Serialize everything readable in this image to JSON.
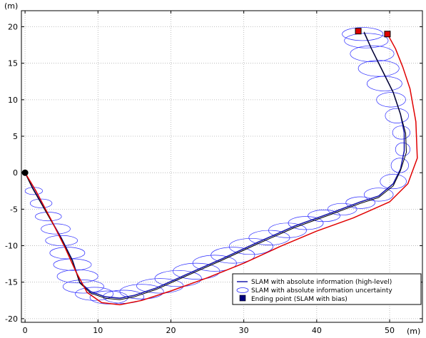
{
  "chart_data": {
    "type": "line",
    "xlabel": "(m)",
    "ylabel": "(m)",
    "xlim": [
      -0.5,
      54.5
    ],
    "ylim": [
      -20.5,
      22.2
    ],
    "xticks": [
      0,
      10,
      20,
      30,
      40,
      50
    ],
    "yticks": [
      -20,
      -15,
      -10,
      -5,
      0,
      5,
      10,
      15,
      20
    ],
    "grid": true,
    "legend_position": "bottom-right",
    "legend": [
      "SLAM with absolute information (high-level)",
      "SLAM with absolute information uncertainty",
      "Ending point (SLAM with bias)"
    ],
    "colors": {
      "slam_abs": "#1a1aaa",
      "uncertainty": "#2a2aff",
      "biased": "#e00000",
      "ground_truth": "#000000",
      "start_marker": "#000000",
      "end_marker_abs": "#e00000",
      "end_marker_bias": "#e00000",
      "legend_square": "#000080",
      "grid": "#b0b0b0"
    },
    "series": [
      {
        "name": "SLAM with absolute information (high-level)",
        "x": [
          0,
          1,
          3,
          5,
          6.5,
          7.5,
          9,
          11,
          13,
          15,
          18,
          22,
          27,
          32,
          37,
          42,
          46,
          48.5,
          50.5,
          51.5,
          52,
          52,
          51.5,
          50.5,
          49,
          47.5,
          46.5
        ],
        "y": [
          0,
          -2,
          -5.5,
          -9,
          -12,
          -15,
          -16.3,
          -17,
          -17.2,
          -16.8,
          -15.8,
          -14,
          -11.8,
          -9.5,
          -7.3,
          -5.5,
          -4,
          -3.2,
          -1.5,
          0.5,
          3,
          5.5,
          8,
          11,
          14,
          17,
          19.2
        ]
      },
      {
        "x": [
          0,
          1,
          3,
          5,
          6.5,
          7.5,
          9,
          11,
          13,
          15,
          18,
          22,
          27,
          32,
          37,
          42,
          46,
          48.5,
          50.5,
          51.5,
          52.3,
          52.2,
          51.5,
          50.5,
          49,
          47.5,
          46.5
        ],
        "y": [
          0,
          -2.1,
          -5.6,
          -9.1,
          -12.1,
          -15.1,
          -16.5,
          -17.2,
          -17.4,
          -17,
          -16,
          -14.2,
          -12,
          -9.7,
          -7.5,
          -5.7,
          -4.2,
          -3.4,
          -1.8,
          0.3,
          2.8,
          5.4,
          8,
          11,
          14,
          17,
          19.3
        ]
      },
      {
        "x": [
          0,
          1.5,
          3.5,
          5.5,
          7,
          8.5,
          10.5,
          13,
          16,
          20,
          25,
          30,
          35,
          40,
          45,
          50,
          52.5,
          53.8,
          53.6,
          52.8,
          51.8,
          50.8,
          49.7
        ],
        "y": [
          0,
          -2.5,
          -6.3,
          -10.3,
          -13.6,
          -16.4,
          -17.8,
          -18.1,
          -17.5,
          -16.2,
          -14.4,
          -12.4,
          -10.1,
          -8,
          -6.2,
          -4,
          -1.5,
          2,
          7,
          11.5,
          14.5,
          17,
          19
        ]
      }
    ],
    "uncertainty_ellipses": [
      {
        "x": 1.2,
        "y": -2.5,
        "rx": 1.2,
        "ry": 0.5
      },
      {
        "x": 2.2,
        "y": -4.2,
        "rx": 1.5,
        "ry": 0.6
      },
      {
        "x": 3.2,
        "y": -6,
        "rx": 1.8,
        "ry": 0.6
      },
      {
        "x": 4.2,
        "y": -7.7,
        "rx": 2,
        "ry": 0.7
      },
      {
        "x": 5,
        "y": -9.3,
        "rx": 2.2,
        "ry": 0.7
      },
      {
        "x": 5.8,
        "y": -11,
        "rx": 2.4,
        "ry": 0.8
      },
      {
        "x": 6.5,
        "y": -12.6,
        "rx": 2.6,
        "ry": 0.8
      },
      {
        "x": 7.2,
        "y": -14.2,
        "rx": 2.8,
        "ry": 0.9
      },
      {
        "x": 8,
        "y": -15.6,
        "rx": 2.8,
        "ry": 0.9
      },
      {
        "x": 9.5,
        "y": -16.6,
        "rx": 2.6,
        "ry": 0.9
      },
      {
        "x": 11.5,
        "y": -17.1,
        "rx": 2.6,
        "ry": 0.9
      },
      {
        "x": 13.5,
        "y": -17,
        "rx": 2.8,
        "ry": 0.9
      },
      {
        "x": 16,
        "y": -16.3,
        "rx": 3,
        "ry": 1
      },
      {
        "x": 18.5,
        "y": -15.5,
        "rx": 3.2,
        "ry": 1
      },
      {
        "x": 21,
        "y": -14.5,
        "rx": 3.2,
        "ry": 1.1
      },
      {
        "x": 23.5,
        "y": -13.5,
        "rx": 3.2,
        "ry": 1.1
      },
      {
        "x": 26,
        "y": -12.4,
        "rx": 3,
        "ry": 1.1
      },
      {
        "x": 28.5,
        "y": -11.3,
        "rx": 3,
        "ry": 1.1
      },
      {
        "x": 31,
        "y": -10.1,
        "rx": 3,
        "ry": 1.1
      },
      {
        "x": 33.5,
        "y": -8.9,
        "rx": 2.8,
        "ry": 1
      },
      {
        "x": 36,
        "y": -7.9,
        "rx": 2.6,
        "ry": 1
      },
      {
        "x": 38.5,
        "y": -6.9,
        "rx": 2.4,
        "ry": 0.9
      },
      {
        "x": 41,
        "y": -5.9,
        "rx": 2.2,
        "ry": 0.8
      },
      {
        "x": 43.5,
        "y": -5,
        "rx": 2,
        "ry": 0.8
      },
      {
        "x": 46,
        "y": -4.1,
        "rx": 2,
        "ry": 0.8
      },
      {
        "x": 48.5,
        "y": -3,
        "rx": 2,
        "ry": 0.9
      },
      {
        "x": 50.5,
        "y": -1.2,
        "rx": 1.8,
        "ry": 1
      },
      {
        "x": 51.4,
        "y": 1,
        "rx": 1.2,
        "ry": 1
      },
      {
        "x": 51.8,
        "y": 3.2,
        "rx": 1,
        "ry": 0.9
      },
      {
        "x": 51.6,
        "y": 5.5,
        "rx": 1.2,
        "ry": 0.9
      },
      {
        "x": 51,
        "y": 7.8,
        "rx": 1.6,
        "ry": 1
      },
      {
        "x": 50.2,
        "y": 10,
        "rx": 2,
        "ry": 1
      },
      {
        "x": 49.3,
        "y": 12.2,
        "rx": 2.4,
        "ry": 1
      },
      {
        "x": 48.5,
        "y": 14.3,
        "rx": 2.8,
        "ry": 1.1
      },
      {
        "x": 47.6,
        "y": 16.3,
        "rx": 3,
        "ry": 1.1
      },
      {
        "x": 46.8,
        "y": 18.1,
        "rx": 3,
        "ry": 1
      },
      {
        "x": 46.3,
        "y": 19,
        "rx": 2.8,
        "ry": 0.9
      }
    ],
    "markers": [
      {
        "type": "start",
        "x": 0,
        "y": 0
      },
      {
        "type": "end_abs",
        "x": 45.7,
        "y": 19.4
      },
      {
        "type": "end_bias",
        "x": 49.7,
        "y": 19
      }
    ]
  }
}
